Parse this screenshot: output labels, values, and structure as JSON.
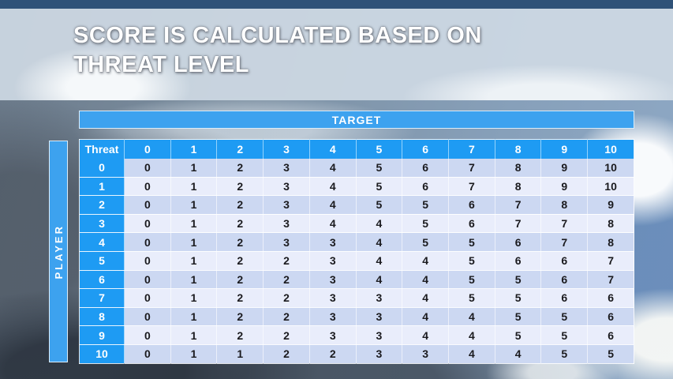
{
  "title": {
    "line1": "SCORE IS CALCULATED BASED ON",
    "line2": "THREAT LEVEL"
  },
  "target_label": "TARGET",
  "player_label": "PLAYER",
  "table": {
    "corner_label": "Threat",
    "column_headers": [
      "0",
      "1",
      "2",
      "3",
      "4",
      "5",
      "6",
      "7",
      "8",
      "9",
      "10"
    ],
    "rows": [
      {
        "threat": "0",
        "scores": [
          0,
          1,
          2,
          3,
          4,
          5,
          6,
          7,
          8,
          9,
          10
        ]
      },
      {
        "threat": "1",
        "scores": [
          0,
          1,
          2,
          3,
          4,
          5,
          6,
          7,
          8,
          9,
          10
        ]
      },
      {
        "threat": "2",
        "scores": [
          0,
          1,
          2,
          3,
          4,
          5,
          5,
          6,
          7,
          8,
          9
        ]
      },
      {
        "threat": "3",
        "scores": [
          0,
          1,
          2,
          3,
          4,
          4,
          5,
          6,
          7,
          7,
          8
        ]
      },
      {
        "threat": "4",
        "scores": [
          0,
          1,
          2,
          3,
          3,
          4,
          5,
          5,
          6,
          7,
          8
        ]
      },
      {
        "threat": "5",
        "scores": [
          0,
          1,
          2,
          2,
          3,
          4,
          4,
          5,
          6,
          6,
          7
        ]
      },
      {
        "threat": "6",
        "scores": [
          0,
          1,
          2,
          2,
          3,
          4,
          4,
          5,
          5,
          6,
          7
        ]
      },
      {
        "threat": "7",
        "scores": [
          0,
          1,
          2,
          2,
          3,
          3,
          4,
          5,
          5,
          6,
          6
        ]
      },
      {
        "threat": "8",
        "scores": [
          0,
          1,
          2,
          2,
          3,
          3,
          4,
          4,
          5,
          5,
          6
        ]
      },
      {
        "threat": "9",
        "scores": [
          0,
          1,
          2,
          2,
          3,
          3,
          4,
          4,
          5,
          5,
          6
        ]
      },
      {
        "threat": "10",
        "scores": [
          0,
          1,
          1,
          2,
          2,
          3,
          3,
          4,
          4,
          5,
          5
        ]
      }
    ]
  },
  "colors": {
    "header_blue": "#1e9bf3",
    "bar_blue": "#3da2ef",
    "row_even_bg": "#ccd8f2",
    "row_odd_bg": "#e9edfb",
    "cell_text": "#1a1a1e",
    "title_text": "#ffffff",
    "top_strip": "#2f5278"
  }
}
